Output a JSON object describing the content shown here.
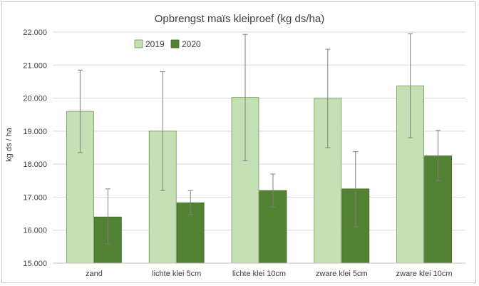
{
  "chart_data": {
    "type": "bar",
    "title": "Opbrengst maïs kleiproef (kg ds/ha)",
    "xlabel": "",
    "ylabel": "kg ds / ha",
    "ylim": [
      15000,
      22000
    ],
    "y_ticks": [
      "15.000",
      "16.000",
      "17.000",
      "18.000",
      "19.000",
      "20.000",
      "21.000",
      "22.000"
    ],
    "categories": [
      "zand",
      "lichte klei 5cm",
      "lichte klei 10cm",
      "zware klei 5cm",
      "zware klei 10cm"
    ],
    "series": [
      {
        "name": "2019",
        "color": "#c5e0b4",
        "values": [
          19600,
          19000,
          20020,
          20000,
          20370
        ],
        "error_low": [
          18350,
          17200,
          18100,
          18500,
          18800
        ],
        "error_high": [
          20850,
          20800,
          21930,
          21480,
          21950
        ]
      },
      {
        "name": "2020",
        "color": "#548235",
        "values": [
          16400,
          16830,
          17200,
          17250,
          18250
        ],
        "error_low": [
          15580,
          16470,
          16700,
          16100,
          17500
        ],
        "error_high": [
          17250,
          17200,
          17700,
          18380,
          19020
        ]
      }
    ],
    "grid": true,
    "legend_position": "top-left"
  }
}
